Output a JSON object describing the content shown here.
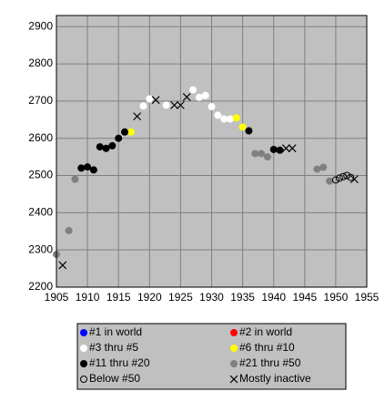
{
  "chart_data": {
    "type": "scatter",
    "xlim": [
      1905,
      1955
    ],
    "xticks": [
      1905,
      1910,
      1915,
      1920,
      1925,
      1930,
      1935,
      1940,
      1945,
      1950,
      1955
    ],
    "ylim": [
      2200,
      2930
    ],
    "yticks": [
      2200,
      2300,
      2400,
      2500,
      2600,
      2700,
      2800,
      2900
    ],
    "grid": true,
    "legend": "bottom",
    "series": [
      {
        "name": "#1 in world",
        "color": "#0000ff",
        "marker": "filled",
        "x": [],
        "values": []
      },
      {
        "name": "#2 in world",
        "color": "#ff0000",
        "marker": "filled",
        "x": [],
        "values": []
      },
      {
        "name": "#3 thru #5",
        "color": "#ffffff",
        "marker": "filled",
        "x": [
          1919,
          1920,
          1922.7,
          1927,
          1928,
          1929,
          1930,
          1931,
          1932,
          1933
        ],
        "values": [
          2687,
          2706,
          2689,
          2730,
          2710,
          2715,
          2685,
          2662,
          2652,
          2652
        ]
      },
      {
        "name": "#6 thru #10",
        "color": "#ffff00",
        "marker": "filled",
        "x": [
          1917,
          1934,
          1935
        ],
        "values": [
          2617,
          2655,
          2630
        ]
      },
      {
        "name": "#11 thru #20",
        "color": "#000000",
        "marker": "filled",
        "x": [
          1909,
          1910,
          1911,
          1912,
          1913,
          1914,
          1915,
          1916,
          1936,
          1940,
          1941
        ],
        "values": [
          2520,
          2523,
          2515,
          2577,
          2573,
          2580,
          2600,
          2617,
          2620,
          2570,
          2568
        ]
      },
      {
        "name": "#21 thru #50",
        "color": "#808080",
        "marker": "filled",
        "x": [
          1905,
          1907,
          1908,
          1937,
          1938,
          1939,
          1947,
          1948,
          1949
        ],
        "values": [
          2288,
          2352,
          2490,
          2559,
          2559,
          2550,
          2517,
          2522,
          2485
        ]
      },
      {
        "name": "Below #50",
        "color": "#000000",
        "marker": "open",
        "x": [
          1950,
          1950.6,
          1951.2,
          1951.8,
          1952.4
        ],
        "values": [
          2488,
          2493,
          2497,
          2500,
          2495
        ]
      },
      {
        "name": "Mostly inactive",
        "color": "#000000",
        "marker": "x",
        "x": [
          1906,
          1918,
          1921,
          1924,
          1925,
          1926,
          1942,
          1943,
          1953
        ],
        "values": [
          2259,
          2659,
          2703,
          2689,
          2689,
          2711,
          2573,
          2573,
          2490
        ]
      }
    ]
  }
}
